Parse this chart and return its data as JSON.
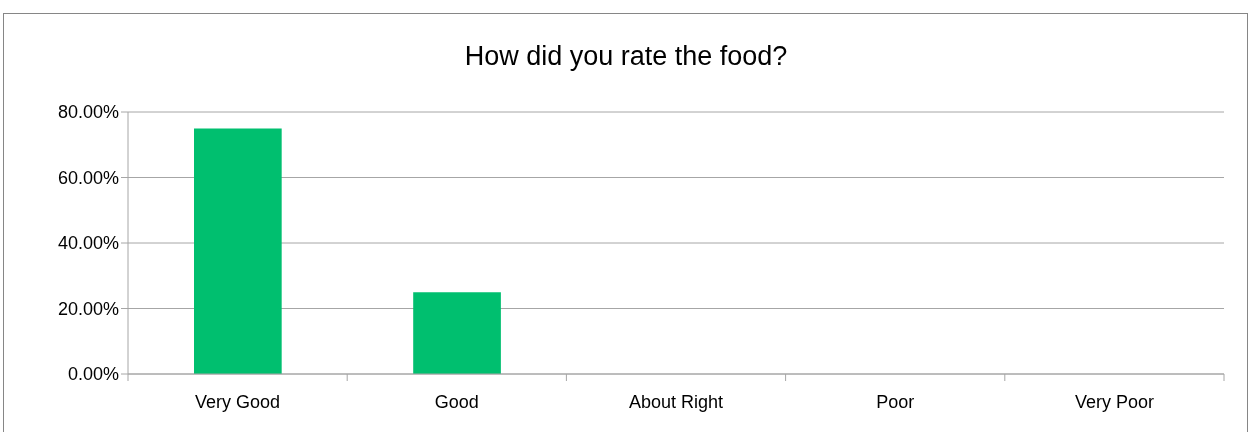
{
  "chart_data": {
    "type": "bar",
    "title": "How did you rate the food?",
    "categories": [
      "Very Good",
      "Good",
      "About Right",
      "Poor",
      "Very Poor"
    ],
    "values": [
      75,
      25,
      0,
      0,
      0
    ],
    "color": "#00bf6f",
    "ylim": [
      0,
      80
    ],
    "yticks": [
      {
        "value": 0,
        "label": "0.00%"
      },
      {
        "value": 20,
        "label": "20.00%"
      },
      {
        "value": 40,
        "label": "40.00%"
      },
      {
        "value": 60,
        "label": "60.00%"
      },
      {
        "value": 80,
        "label": "80.00%"
      }
    ],
    "grid": "y"
  }
}
